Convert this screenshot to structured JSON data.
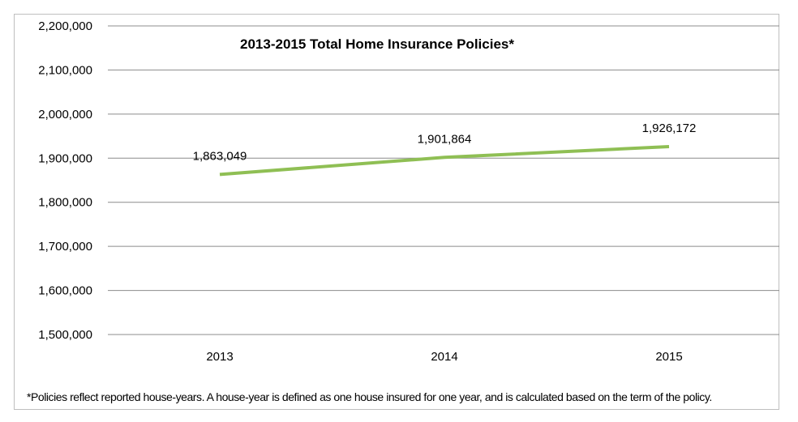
{
  "chart_data": {
    "type": "line",
    "title": "2013-2015 Total Home Insurance Policies*",
    "xlabel": "",
    "ylabel": "",
    "categories": [
      "2013",
      "2014",
      "2015"
    ],
    "series": [
      {
        "values": [
          1863049,
          1901864,
          1926172
        ],
        "color": "#8fbf54"
      }
    ],
    "data_labels": [
      "1,863,049",
      "1,901,864",
      "1,926,172"
    ],
    "ylim": [
      1500000,
      2200000
    ],
    "y_ticks": [
      1500000,
      1600000,
      1700000,
      1800000,
      1900000,
      2000000,
      2100000,
      2200000
    ],
    "y_tick_labels": [
      "1,500,000",
      "1,600,000",
      "1,700,000",
      "1,800,000",
      "1,900,000",
      "2,000,000",
      "2,100,000",
      "2,200,000"
    ],
    "grid": true,
    "legend": "none"
  },
  "footnote": "*Policies reflect reported house-years. A house-year is defined as one house insured for one year, and is calculated based on the term of the policy."
}
